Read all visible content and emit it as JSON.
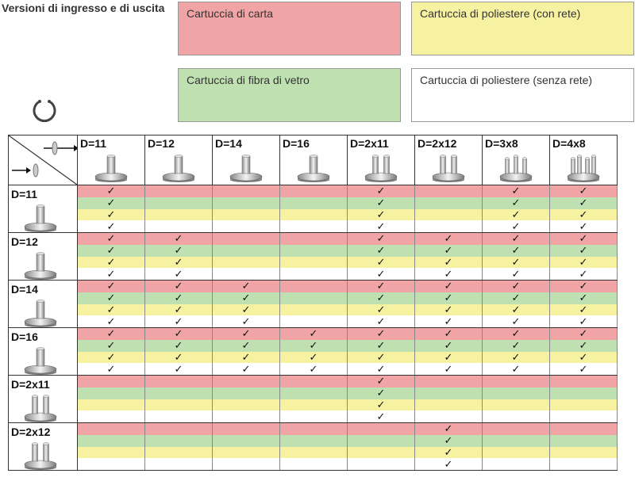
{
  "title": "Versioni di ingresso e di uscita",
  "legend": [
    {
      "label": "Cartuccia di carta",
      "color": "#f0a4a5"
    },
    {
      "label": "Cartuccia di poliestere (con rete)",
      "color": "#f7f1a2"
    },
    {
      "label": "Cartuccia di fibra di vetro",
      "color": "#bfe0b1"
    },
    {
      "label": "Cartuccia di poliestere (senza rete)",
      "color": "#ffffff"
    }
  ],
  "columns": [
    "D=11",
    "D=12",
    "D=14",
    "D=16",
    "D=2x11",
    "D=2x12",
    "D=3x8",
    "D=4x8"
  ],
  "column_pins": [
    1,
    1,
    1,
    1,
    2,
    2,
    3,
    4
  ],
  "check_symbol": "✓",
  "rows": [
    {
      "label": "D=11",
      "pins": 1,
      "compatible": [
        1,
        0,
        0,
        0,
        1,
        0,
        1,
        1
      ]
    },
    {
      "label": "D=12",
      "pins": 1,
      "compatible": [
        1,
        1,
        0,
        0,
        1,
        1,
        1,
        1
      ]
    },
    {
      "label": "D=14",
      "pins": 1,
      "compatible": [
        1,
        1,
        1,
        0,
        1,
        1,
        1,
        1
      ]
    },
    {
      "label": "D=16",
      "pins": 1,
      "compatible": [
        1,
        1,
        1,
        1,
        1,
        1,
        1,
        1
      ]
    },
    {
      "label": "D=2x11",
      "pins": 2,
      "compatible": [
        0,
        0,
        0,
        0,
        1,
        0,
        0,
        0
      ]
    },
    {
      "label": "D=2x12",
      "pins": 2,
      "compatible": [
        0,
        0,
        0,
        0,
        0,
        1,
        0,
        0
      ]
    }
  ]
}
